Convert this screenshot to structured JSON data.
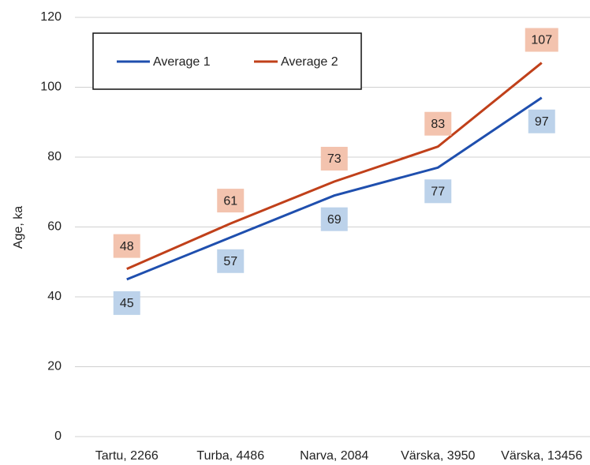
{
  "chart_data": {
    "type": "line",
    "y_label": "Age, ka",
    "categories": [
      "Tartu, 2266",
      "Turba, 4486",
      "Narva, 2084",
      "Värska, 3950",
      "Värska, 13456"
    ],
    "series": [
      {
        "name": "Average 1",
        "color": "#1f4fae",
        "label_color": "#bcd2ea",
        "values": [
          45,
          57,
          69,
          77,
          97
        ]
      },
      {
        "name": "Average 2",
        "color": "#c0401a",
        "label_color": "#f3c3ae",
        "values": [
          48,
          61,
          73,
          83,
          107
        ]
      }
    ],
    "ylim": [
      0,
      120
    ],
    "yticks": [
      0,
      20,
      40,
      60,
      80,
      100,
      120
    ],
    "grid": true,
    "legend": "top-left"
  }
}
